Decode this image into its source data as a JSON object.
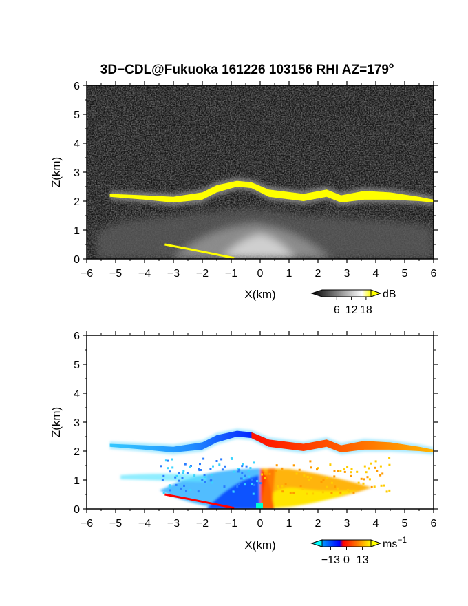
{
  "title": {
    "text": "3D−CDL@Fukuoka 161226 103156 RHI AZ=179",
    "degree": "o"
  },
  "chart_data": [
    {
      "type": "heatmap",
      "name": "backscatter",
      "xlabel": "X(km)",
      "ylabel": "Z(km)",
      "xlim": [
        -6,
        6
      ],
      "ylim": [
        0,
        6
      ],
      "xticks": [
        "−6",
        "−5",
        "−4",
        "−3",
        "−2",
        "−1",
        "0",
        "1",
        "2",
        "3",
        "4",
        "5",
        "6"
      ],
      "yticks": [
        "0",
        "1",
        "2",
        "3",
        "4",
        "5",
        "6"
      ],
      "grid": false,
      "colorbar": {
        "unit": "dB",
        "ticks": [
          "6",
          "12",
          "18"
        ],
        "tick_values": [
          6,
          12,
          18
        ],
        "range": [
          0,
          20
        ],
        "colors": [
          "#000000",
          "#ffffff",
          "#ffff00"
        ]
      },
      "features": {
        "cloud_layer_base_km": [
          [
            -5.2,
            2.15
          ],
          [
            -4,
            2.05
          ],
          [
            -3,
            1.95
          ],
          [
            -2,
            2.05
          ],
          [
            -1.5,
            2.3
          ],
          [
            -0.8,
            2.5
          ],
          [
            -0.3,
            2.45
          ],
          [
            0.3,
            2.15
          ],
          [
            1.5,
            2.0
          ],
          [
            2.3,
            2.15
          ],
          [
            2.8,
            1.95
          ],
          [
            3.6,
            2.05
          ],
          [
            4.5,
            2.05
          ],
          [
            5.5,
            2.0
          ],
          [
            6,
            1.95
          ]
        ],
        "cloud_layer_top_km": [
          [
            -5.2,
            2.25
          ],
          [
            -4,
            2.2
          ],
          [
            -3,
            2.15
          ],
          [
            -2,
            2.3
          ],
          [
            -1.5,
            2.55
          ],
          [
            -0.8,
            2.7
          ],
          [
            -0.3,
            2.65
          ],
          [
            0.3,
            2.4
          ],
          [
            1.5,
            2.25
          ],
          [
            2.3,
            2.4
          ],
          [
            2.8,
            2.2
          ],
          [
            3.6,
            2.35
          ],
          [
            4.5,
            2.3
          ],
          [
            5.5,
            2.15
          ],
          [
            6,
            2.05
          ]
        ],
        "ground_return_km": [
          [
            -3.3,
            0.5
          ],
          [
            -2.5,
            0.35
          ],
          [
            -1.5,
            0.15
          ],
          [
            -0.9,
            0.03
          ]
        ]
      }
    },
    {
      "type": "heatmap",
      "name": "doppler_velocity",
      "xlabel": "X(km)",
      "ylabel": "Z(km)",
      "xlim": [
        -6,
        6
      ],
      "ylim": [
        0,
        6
      ],
      "xticks": [
        "−6",
        "−5",
        "−4",
        "−3",
        "−2",
        "−1",
        "0",
        "1",
        "2",
        "3",
        "4",
        "5",
        "6"
      ],
      "yticks": [
        "0",
        "1",
        "2",
        "3",
        "4",
        "5",
        "6"
      ],
      "grid": false,
      "colorbar": {
        "unit": "ms",
        "unit_exponent": "−1",
        "ticks": [
          "−13",
          "0",
          "13"
        ],
        "tick_values": [
          -13,
          0,
          13
        ],
        "range": [
          -20,
          20
        ],
        "colors": [
          "#00ffff",
          "#0080ff",
          "#0000ff",
          "#ff0000",
          "#ff8000",
          "#ffff00"
        ]
      },
      "velocity_at_km": {
        "x": [
          -5,
          -4,
          -3,
          -2,
          -1,
          -0.3,
          0.3,
          1,
          2,
          3,
          4,
          5,
          6
        ],
        "cloud_layer_ms": [
          -16,
          -15,
          -13,
          -10,
          -5,
          -2,
          2,
          5,
          8,
          10,
          12,
          13,
          14
        ],
        "lower_fan_ms": [
          -18,
          -17,
          -15,
          -12,
          -6,
          -2,
          2,
          6,
          11,
          14,
          16,
          17,
          17
        ]
      }
    }
  ]
}
